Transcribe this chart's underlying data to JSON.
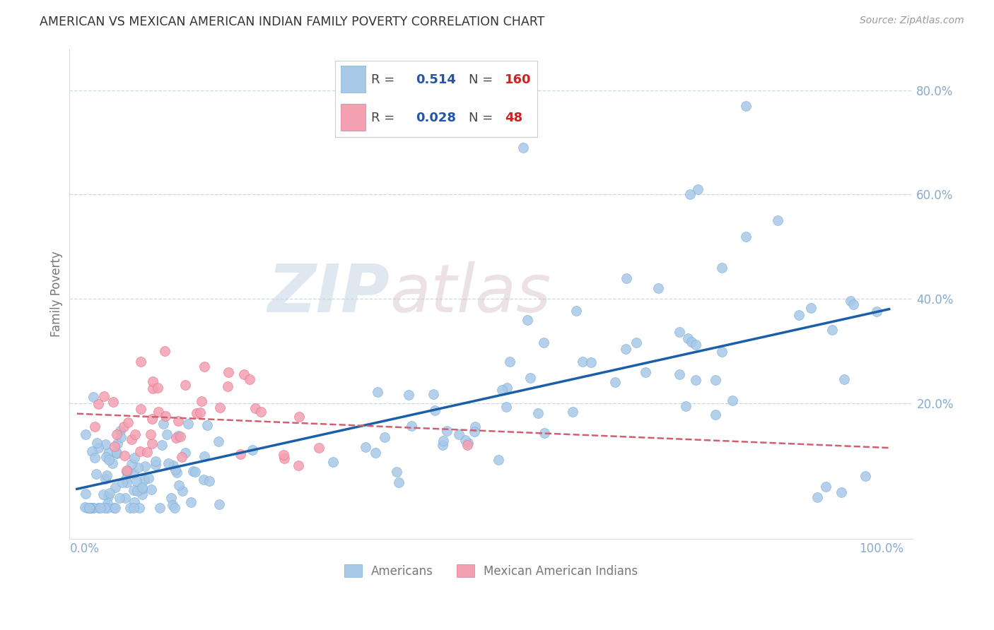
{
  "title": "AMERICAN VS MEXICAN AMERICAN INDIAN FAMILY POVERTY CORRELATION CHART",
  "source": "Source: ZipAtlas.com",
  "ylabel": "Family Poverty",
  "americans_R": 0.514,
  "americans_N": 160,
  "mexicans_R": 0.028,
  "mexicans_N": 48,
  "blue_color": "#a8c8e8",
  "blue_edge_color": "#7ab0d8",
  "pink_color": "#f4a0b0",
  "pink_edge_color": "#e87090",
  "blue_line_color": "#1a5fa8",
  "pink_line_color": "#d06070",
  "legend_label_americans": "Americans",
  "legend_label_mexicans": "Mexican American Indians",
  "watermark_zip": "ZIP",
  "watermark_atlas": "atlas",
  "background_color": "#ffffff",
  "grid_color": "#c8d8e8",
  "title_color": "#333333",
  "axis_label_color": "#777777",
  "tick_color": "#88aacc",
  "r_value_color": "#2255aa",
  "n_value_color": "#cc2222",
  "legend_text_color": "#444444"
}
